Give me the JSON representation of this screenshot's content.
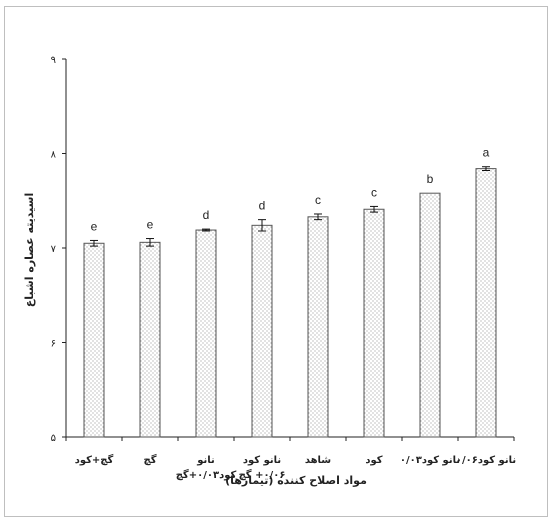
{
  "chart_data": {
    "type": "bar",
    "title": "",
    "xlabel": "مواد اصلاح کننده (تیمارها)",
    "ylabel": "اسیدیته عصاره اشباع",
    "ylim": [
      5,
      9
    ],
    "yticks": [
      {
        "value": 5,
        "label": "۵"
      },
      {
        "value": 6,
        "label": "۶"
      },
      {
        "value": 7,
        "label": "۷"
      },
      {
        "value": 8,
        "label": "۸"
      },
      {
        "value": 9,
        "label": "۹"
      }
    ],
    "categories": [
      [
        "گچ+کود"
      ],
      [
        "گچ"
      ],
      [
        "نانو",
        "کود۰/۰۳+گچ"
      ],
      [
        "نانو کود",
        "۰/۰۶+ گچ"
      ],
      [
        "شاهد"
      ],
      [
        "کود"
      ],
      [
        "نانو کود۰/۰۳"
      ],
      [
        "نانو کود۰/۰۶"
      ]
    ],
    "values": [
      7.05,
      7.06,
      7.19,
      7.24,
      7.33,
      7.41,
      7.58,
      7.84
    ],
    "errors": [
      0.03,
      0.04,
      0.01,
      0.06,
      0.03,
      0.03,
      0,
      0.02
    ],
    "significance_letters": [
      "e",
      "e",
      "d",
      "d",
      "c",
      "c",
      "b",
      "a"
    ],
    "grid": false,
    "bar_fill": "#f2f2f2",
    "bar_stroke": "#555555",
    "axis_color": "#222222"
  }
}
